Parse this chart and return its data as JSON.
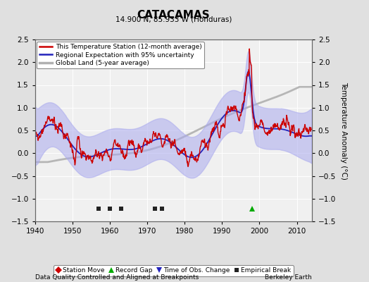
{
  "title": "CATACAMAS",
  "subtitle": "14.900 N, 85.933 W (Honduras)",
  "xlabel_bottom": "Data Quality Controlled and Aligned at Breakpoints",
  "xlabel_right": "Berkeley Earth",
  "ylabel": "Temperature Anomaly (°C)",
  "xlim": [
    1940,
    2014
  ],
  "ylim": [
    -1.5,
    2.5
  ],
  "yticks": [
    -1.5,
    -1.0,
    -0.5,
    0.0,
    0.5,
    1.0,
    1.5,
    2.0,
    2.5
  ],
  "xticks": [
    1940,
    1950,
    1960,
    1970,
    1980,
    1990,
    2000,
    2010
  ],
  "bg_color": "#e0e0e0",
  "plot_bg_color": "#f0f0f0",
  "grid_color": "#ffffff",
  "station_color": "#cc0000",
  "regional_color": "#2222bb",
  "regional_fill_color": "#aaaaee",
  "global_color": "#b0b0b0",
  "legend_entries": [
    "This Temperature Station (12-month average)",
    "Regional Expectation with 95% uncertainty",
    "Global Land (5-year average)"
  ],
  "empirical_breaks": [
    1957,
    1960,
    1963,
    1972,
    1974
  ],
  "record_gap": [
    1998
  ],
  "time_obs_change": [],
  "station_move": [],
  "marker_y": -1.22,
  "seed": 42
}
